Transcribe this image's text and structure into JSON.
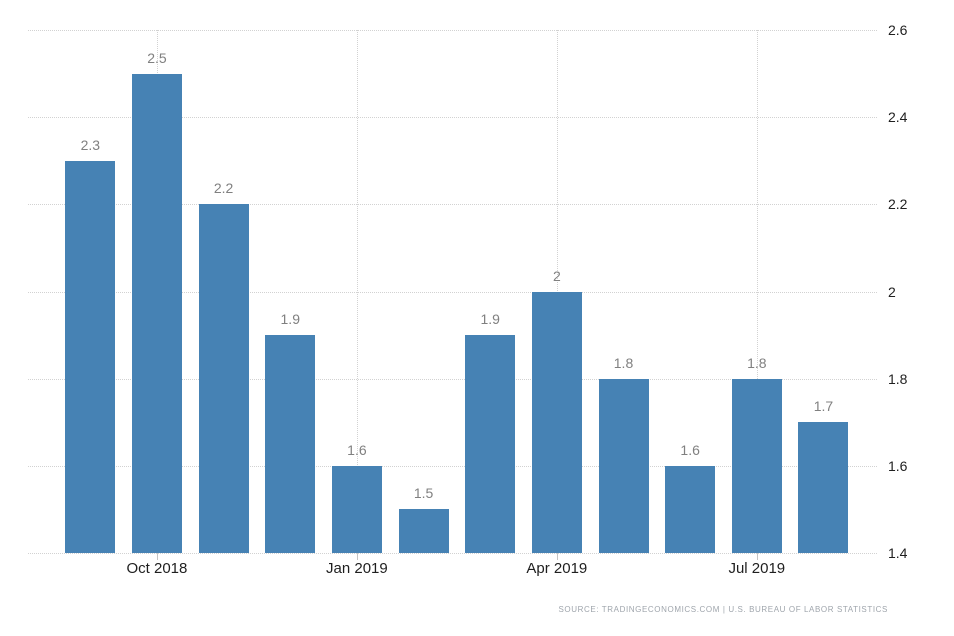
{
  "chart_data": {
    "type": "bar",
    "title": "",
    "xlabel": "",
    "ylabel": "",
    "values": [
      2.3,
      2.5,
      2.2,
      1.9,
      1.6,
      1.5,
      1.9,
      2,
      1.8,
      1.6,
      1.8,
      1.7
    ],
    "bar_value_labels": [
      "2.3",
      "2.5",
      "2.2",
      "1.9",
      "1.6",
      "1.5",
      "1.9",
      "2",
      "1.8",
      "1.6",
      "1.8",
      "1.7"
    ],
    "x_ticks": [
      {
        "bar_index": 1,
        "label": "Oct 2018"
      },
      {
        "bar_index": 4,
        "label": "Jan 2019"
      },
      {
        "bar_index": 7,
        "label": "Apr 2019"
      },
      {
        "bar_index": 10,
        "label": "Jul 2019"
      }
    ],
    "y_ticks": [
      {
        "value": 2.6,
        "label": "2.6"
      },
      {
        "value": 2.4,
        "label": "2.4"
      },
      {
        "value": 2.2,
        "label": "2.2"
      },
      {
        "value": 2.0,
        "label": "2"
      },
      {
        "value": 1.8,
        "label": "1.8"
      },
      {
        "value": 1.6,
        "label": "1.6"
      },
      {
        "value": 1.4,
        "label": "1.4"
      }
    ],
    "ylim": [
      1.4,
      2.6
    ],
    "grid": "dotted",
    "legend": "none"
  },
  "colors": {
    "bar": "#4682b4",
    "gridline": "#d2d2d2",
    "bar_label_text": "#808080",
    "axis_text": "#1f1f1f",
    "tick_mark": "#c4c4c4",
    "source_text": "#9fa5ac",
    "background": "#ffffff"
  },
  "source_line": "SOURCE: TRADINGECONOMICS.COM | U.S. BUREAU OF LABOR STATISTICS"
}
